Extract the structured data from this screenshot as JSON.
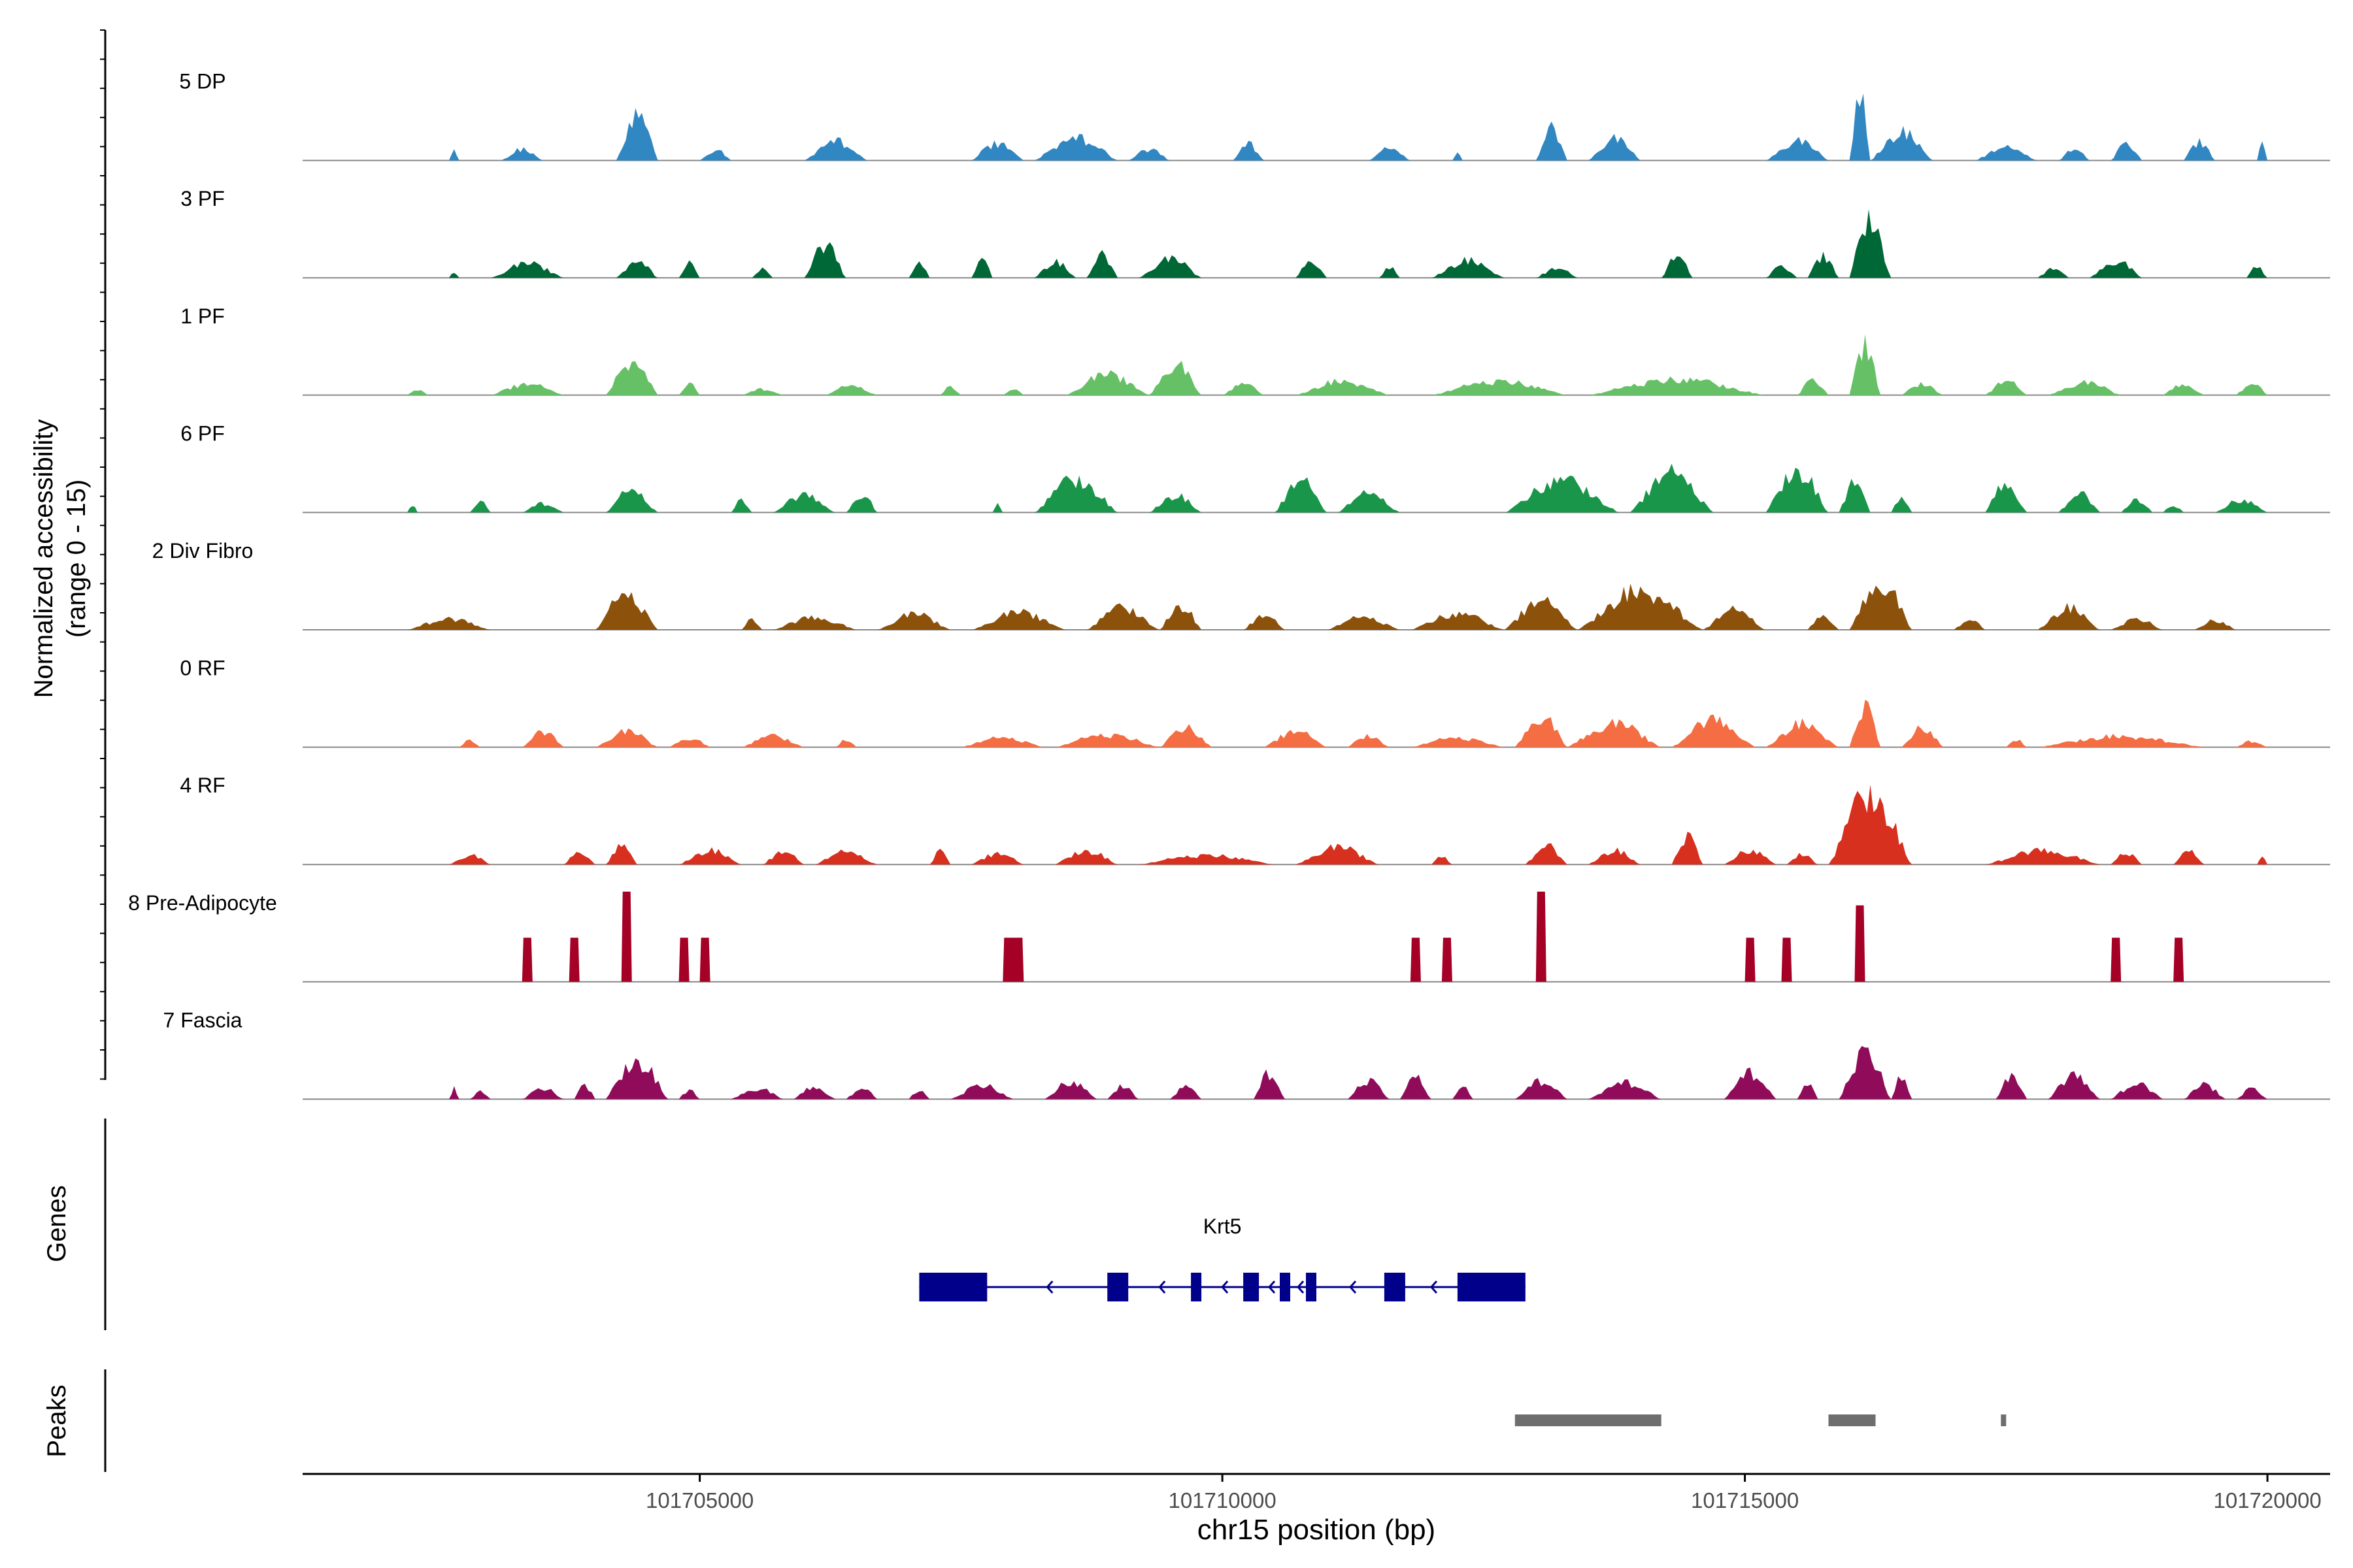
{
  "chart_data": {
    "type": "coverage",
    "title": "",
    "y_axis_label": [
      "Normalized accessibility",
      "(range 0 - 15)"
    ],
    "y_range": [
      0,
      15
    ],
    "x_axis_label": "chr15 position (bp)",
    "x_range": [
      101701200,
      101720600
    ],
    "x_ticks": [
      {
        "value": 101705000,
        "label": "101705000"
      },
      {
        "value": 101710000,
        "label": "101710000"
      },
      {
        "value": 101715000,
        "label": "101715000"
      },
      {
        "value": 101720000,
        "label": "101720000"
      }
    ],
    "tracks": [
      {
        "name": "5 DP",
        "color": "#3187C2",
        "style": "smooth",
        "peaks": [
          [
            101702600,
            101702700,
            0.12
          ],
          [
            101703100,
            101703500,
            0.14
          ],
          [
            101704200,
            101704600,
            0.58
          ],
          [
            101705000,
            101705300,
            0.14
          ],
          [
            101706000,
            101706600,
            0.26
          ],
          [
            101707600,
            101708100,
            0.22
          ],
          [
            101708200,
            101709000,
            0.3
          ],
          [
            101709100,
            101709500,
            0.14
          ],
          [
            101710100,
            101710400,
            0.22
          ],
          [
            101711400,
            101711800,
            0.15
          ],
          [
            101712200,
            101712300,
            0.1
          ],
          [
            101713000,
            101713300,
            0.42
          ],
          [
            101713500,
            101714000,
            0.28
          ],
          [
            101715200,
            101715800,
            0.25
          ],
          [
            101716000,
            101716200,
            0.88
          ],
          [
            101716200,
            101716800,
            0.36
          ],
          [
            101717200,
            101717800,
            0.16
          ],
          [
            101718000,
            101718300,
            0.14
          ],
          [
            101718500,
            101718800,
            0.22
          ],
          [
            101719200,
            101719500,
            0.24
          ],
          [
            101719900,
            101720000,
            0.2
          ]
        ]
      },
      {
        "name": "3 PF",
        "color": "#006837",
        "style": "smooth",
        "peaks": [
          [
            101702600,
            101702700,
            0.08
          ],
          [
            101703000,
            101703700,
            0.18
          ],
          [
            101704200,
            101704600,
            0.22
          ],
          [
            101704800,
            101705000,
            0.18
          ],
          [
            101705500,
            101705700,
            0.12
          ],
          [
            101706000,
            101706400,
            0.42
          ],
          [
            101707000,
            101707200,
            0.2
          ],
          [
            101707600,
            101707800,
            0.25
          ],
          [
            101708200,
            101708600,
            0.2
          ],
          [
            101708700,
            101709000,
            0.3
          ],
          [
            101709200,
            101709800,
            0.24
          ],
          [
            101710700,
            101711000,
            0.24
          ],
          [
            101711500,
            101711700,
            0.14
          ],
          [
            101712000,
            101712700,
            0.22
          ],
          [
            101713000,
            101713400,
            0.12
          ],
          [
            101714200,
            101714500,
            0.28
          ],
          [
            101715200,
            101715500,
            0.15
          ],
          [
            101715600,
            101715900,
            0.28
          ],
          [
            101716000,
            101716400,
            0.78
          ],
          [
            101717800,
            101718100,
            0.12
          ],
          [
            101718300,
            101718800,
            0.22
          ],
          [
            101719800,
            101720000,
            0.14
          ]
        ]
      },
      {
        "name": "1 PF",
        "color": "#66C166",
        "style": "smooth",
        "peaks": [
          [
            101702200,
            101702400,
            0.08
          ],
          [
            101703000,
            101703700,
            0.14
          ],
          [
            101704100,
            101704600,
            0.45
          ],
          [
            101704800,
            101705000,
            0.15
          ],
          [
            101705400,
            101705800,
            0.08
          ],
          [
            101706200,
            101706700,
            0.12
          ],
          [
            101707300,
            101707500,
            0.12
          ],
          [
            101707900,
            101708100,
            0.08
          ],
          [
            101708500,
            101709300,
            0.26
          ],
          [
            101709300,
            101709800,
            0.4
          ],
          [
            101710000,
            101710400,
            0.14
          ],
          [
            101710700,
            101711600,
            0.18
          ],
          [
            101712000,
            101713300,
            0.18
          ],
          [
            101713500,
            101715200,
            0.2
          ],
          [
            101715500,
            101715800,
            0.2
          ],
          [
            101716000,
            101716300,
            0.65
          ],
          [
            101716500,
            101716900,
            0.15
          ],
          [
            101717300,
            101717700,
            0.18
          ],
          [
            101717900,
            101718600,
            0.16
          ],
          [
            101719000,
            101719400,
            0.14
          ],
          [
            101719700,
            101720000,
            0.16
          ]
        ]
      },
      {
        "name": "6 PF",
        "color": "#1A964A",
        "style": "smooth",
        "peaks": [
          [
            101702200,
            101702300,
            0.1
          ],
          [
            101702800,
            101703000,
            0.14
          ],
          [
            101703300,
            101703700,
            0.12
          ],
          [
            101704100,
            101704600,
            0.28
          ],
          [
            101705300,
            101705500,
            0.18
          ],
          [
            101705700,
            101706300,
            0.22
          ],
          [
            101706400,
            101706700,
            0.24
          ],
          [
            101707800,
            101707900,
            0.12
          ],
          [
            101708200,
            101709000,
            0.42
          ],
          [
            101709300,
            101709800,
            0.22
          ],
          [
            101710500,
            101711000,
            0.4
          ],
          [
            101711100,
            101711700,
            0.24
          ],
          [
            101712700,
            101713800,
            0.4
          ],
          [
            101713900,
            101714700,
            0.5
          ],
          [
            101715200,
            101715800,
            0.55
          ],
          [
            101715900,
            101716200,
            0.4
          ],
          [
            101716400,
            101716600,
            0.2
          ],
          [
            101717300,
            101717700,
            0.38
          ],
          [
            101718000,
            101718400,
            0.25
          ],
          [
            101718600,
            101718900,
            0.18
          ],
          [
            101719000,
            101719200,
            0.1
          ],
          [
            101719500,
            101720000,
            0.16
          ]
        ]
      },
      {
        "name": "2 Div Fibro",
        "color": "#8C510A",
        "style": "smooth",
        "peaks": [
          [
            101702200,
            101703000,
            0.14
          ],
          [
            101704000,
            101704600,
            0.45
          ],
          [
            101705400,
            101705600,
            0.15
          ],
          [
            101705700,
            101706500,
            0.16
          ],
          [
            101706700,
            101707400,
            0.2
          ],
          [
            101707600,
            101708500,
            0.22
          ],
          [
            101708700,
            101709400,
            0.28
          ],
          [
            101709400,
            101709800,
            0.32
          ],
          [
            101710200,
            101710600,
            0.18
          ],
          [
            101711000,
            101711700,
            0.16
          ],
          [
            101711800,
            101712700,
            0.2
          ],
          [
            101712700,
            101713400,
            0.36
          ],
          [
            101713400,
            101714600,
            0.5
          ],
          [
            101714600,
            101715200,
            0.25
          ],
          [
            101715600,
            101715900,
            0.2
          ],
          [
            101716000,
            101716600,
            0.62
          ],
          [
            101717000,
            101717300,
            0.14
          ],
          [
            101717800,
            101718400,
            0.28
          ],
          [
            101718500,
            101719000,
            0.14
          ],
          [
            101719300,
            101719700,
            0.12
          ]
        ]
      },
      {
        "name": "0 RF",
        "color": "#F46D43",
        "style": "smooth",
        "peaks": [
          [
            101702700,
            101702900,
            0.1
          ],
          [
            101703300,
            101703700,
            0.2
          ],
          [
            101704000,
            101704600,
            0.2
          ],
          [
            101704700,
            101705100,
            0.12
          ],
          [
            101705400,
            101706000,
            0.14
          ],
          [
            101706300,
            101706500,
            0.1
          ],
          [
            101707500,
            101708300,
            0.12
          ],
          [
            101708400,
            101709400,
            0.16
          ],
          [
            101709400,
            101709900,
            0.25
          ],
          [
            101710400,
            101711000,
            0.2
          ],
          [
            101711200,
            101711600,
            0.15
          ],
          [
            101711800,
            101712700,
            0.12
          ],
          [
            101712800,
            101713300,
            0.4
          ],
          [
            101713300,
            101714200,
            0.3
          ],
          [
            101714300,
            101715100,
            0.35
          ],
          [
            101715200,
            101715900,
            0.3
          ],
          [
            101716000,
            101716300,
            0.55
          ],
          [
            101716500,
            101716900,
            0.25
          ],
          [
            101717500,
            101717700,
            0.1
          ],
          [
            101717800,
            101719400,
            0.14
          ],
          [
            101719700,
            101720000,
            0.08
          ]
        ]
      },
      {
        "name": "4 RF",
        "color": "#D7301F",
        "style": "smooth",
        "peaks": [
          [
            101702600,
            101703000,
            0.12
          ],
          [
            101703700,
            101704000,
            0.18
          ],
          [
            101704100,
            101704400,
            0.24
          ],
          [
            101704800,
            101705400,
            0.18
          ],
          [
            101705600,
            101706000,
            0.16
          ],
          [
            101706100,
            101706700,
            0.16
          ],
          [
            101707200,
            101707400,
            0.18
          ],
          [
            101707600,
            101708100,
            0.14
          ],
          [
            101708400,
            101709000,
            0.18
          ],
          [
            101709200,
            101710500,
            0.12
          ],
          [
            101710700,
            101711500,
            0.22
          ],
          [
            101712000,
            101712200,
            0.1
          ],
          [
            101712900,
            101713300,
            0.25
          ],
          [
            101713500,
            101714000,
            0.18
          ],
          [
            101714300,
            101714600,
            0.38
          ],
          [
            101714800,
            101715300,
            0.18
          ],
          [
            101715400,
            101715700,
            0.14
          ],
          [
            101715800,
            101716600,
            0.9
          ],
          [
            101717300,
            101718400,
            0.18
          ],
          [
            101718500,
            101718800,
            0.16
          ],
          [
            101719100,
            101719400,
            0.18
          ],
          [
            101719900,
            101720000,
            0.1
          ]
        ]
      },
      {
        "name": "8 Pre-Adipocyte",
        "color": "#A50026",
        "style": "block",
        "peaks": [
          [
            101703300,
            101703400,
            0.45
          ],
          [
            101703750,
            101703850,
            0.45
          ],
          [
            101704250,
            101704350,
            0.92
          ],
          [
            101704800,
            101704900,
            0.45
          ],
          [
            101705000,
            101705100,
            0.45
          ],
          [
            101707900,
            101708100,
            0.45
          ],
          [
            101711800,
            101711900,
            0.45
          ],
          [
            101712100,
            101712200,
            0.45
          ],
          [
            101713000,
            101713100,
            0.92
          ],
          [
            101715000,
            101715100,
            0.45
          ],
          [
            101715350,
            101715450,
            0.45
          ],
          [
            101716050,
            101716150,
            0.78
          ],
          [
            101718500,
            101718600,
            0.45
          ],
          [
            101719100,
            101719200,
            0.45
          ]
        ]
      },
      {
        "name": "7 Fascia",
        "color": "#900C5A",
        "style": "smooth",
        "peaks": [
          [
            101702600,
            101702700,
            0.14
          ],
          [
            101702800,
            101703000,
            0.1
          ],
          [
            101703300,
            101703700,
            0.14
          ],
          [
            101703800,
            101704000,
            0.18
          ],
          [
            101704100,
            101704700,
            0.5
          ],
          [
            101704800,
            101705000,
            0.12
          ],
          [
            101705300,
            101705800,
            0.14
          ],
          [
            101705900,
            101706300,
            0.16
          ],
          [
            101706400,
            101706700,
            0.15
          ],
          [
            101707000,
            101707200,
            0.12
          ],
          [
            101707400,
            101708000,
            0.18
          ],
          [
            101708300,
            101708800,
            0.22
          ],
          [
            101708900,
            101709200,
            0.18
          ],
          [
            101709500,
            101709800,
            0.16
          ],
          [
            101710300,
            101710600,
            0.35
          ],
          [
            101711200,
            101711600,
            0.25
          ],
          [
            101711700,
            101712000,
            0.3
          ],
          [
            101712200,
            101712400,
            0.15
          ],
          [
            101712800,
            101713300,
            0.24
          ],
          [
            101713500,
            101714200,
            0.22
          ],
          [
            101714800,
            101715300,
            0.35
          ],
          [
            101715500,
            101715700,
            0.2
          ],
          [
            101715900,
            101716400,
            0.62
          ],
          [
            101716400,
            101716600,
            0.3
          ],
          [
            101717400,
            101717700,
            0.28
          ],
          [
            101717900,
            101718400,
            0.3
          ],
          [
            101718500,
            101719000,
            0.2
          ],
          [
            101719200,
            101719600,
            0.18
          ],
          [
            101719700,
            101720000,
            0.14
          ]
        ]
      }
    ],
    "genes_label": "Genes",
    "gene": {
      "name": "Krt5",
      "color": "#00008B",
      "strand": "-",
      "start": 101707100,
      "end": 101712900,
      "exons": [
        [
          101707100,
          101707750
        ],
        [
          101708900,
          101709100
        ],
        [
          101709700,
          101709800
        ],
        [
          101710200,
          101710350
        ],
        [
          101710550,
          101710650
        ],
        [
          101710800,
          101710900
        ],
        [
          101711550,
          101711750
        ],
        [
          101712250,
          101712900
        ]
      ]
    },
    "peaks_label": "Peaks",
    "peak_color": "#6E6E6E",
    "peak_regions": [
      [
        101712800,
        101714200
      ],
      [
        101715800,
        101716250
      ],
      [
        101717450,
        101717500
      ]
    ]
  }
}
